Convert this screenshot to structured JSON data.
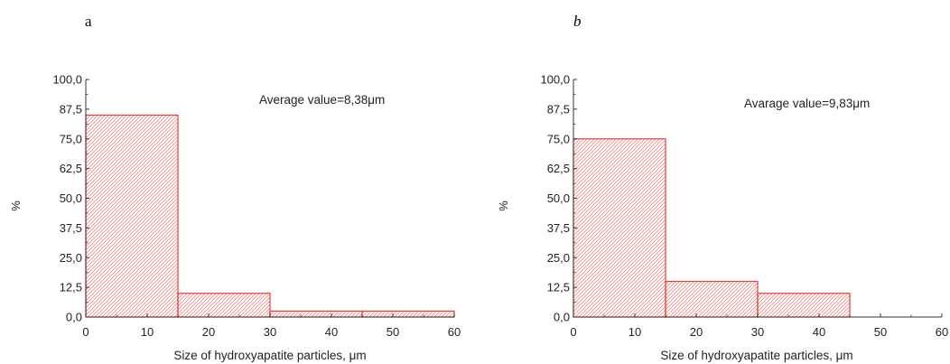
{
  "colors": {
    "bar_stroke": "#e0413c",
    "hatch": "#f08a86",
    "axis": "#333333"
  },
  "chart_data": [
    {
      "type": "bar",
      "panel_label": "a",
      "bins": [
        [
          0,
          15
        ],
        [
          15,
          30
        ],
        [
          30,
          45
        ],
        [
          45,
          60
        ]
      ],
      "values": [
        85,
        10,
        2.5,
        2.5
      ],
      "xlabel": "Size of hydroxyapatite particles, μm",
      "ylabel": "%",
      "xlim": [
        0,
        60
      ],
      "ylim": [
        0,
        100
      ],
      "x_ticks": [
        "0",
        "10",
        "20",
        "30",
        "40",
        "50",
        "60"
      ],
      "y_ticks": [
        "0,0",
        "12,5",
        "25,0",
        "37,5",
        "50,0",
        "62,5",
        "75,0",
        "87,5",
        "100,0"
      ],
      "annotation": "Average value=8,38μm",
      "grid": false,
      "bar_fill": "diagonal-hatch"
    },
    {
      "type": "bar",
      "panel_label": "b",
      "bins": [
        [
          0,
          15
        ],
        [
          15,
          30
        ],
        [
          30,
          45
        ]
      ],
      "values": [
        75,
        15,
        10
      ],
      "xlabel": "Size of hydroxyapatite particles, μm",
      "ylabel": "%",
      "xlim": [
        0,
        60
      ],
      "ylim": [
        0,
        100
      ],
      "x_ticks": [
        "0",
        "10",
        "20",
        "30",
        "40",
        "50",
        "60"
      ],
      "y_ticks": [
        "0,0",
        "12,5",
        "25,0",
        "37,5",
        "50,0",
        "62,5",
        "75,0",
        "87,5",
        "100,0"
      ],
      "annotation": "Avarage value=9,83μm",
      "grid": false,
      "bar_fill": "diagonal-hatch"
    }
  ]
}
